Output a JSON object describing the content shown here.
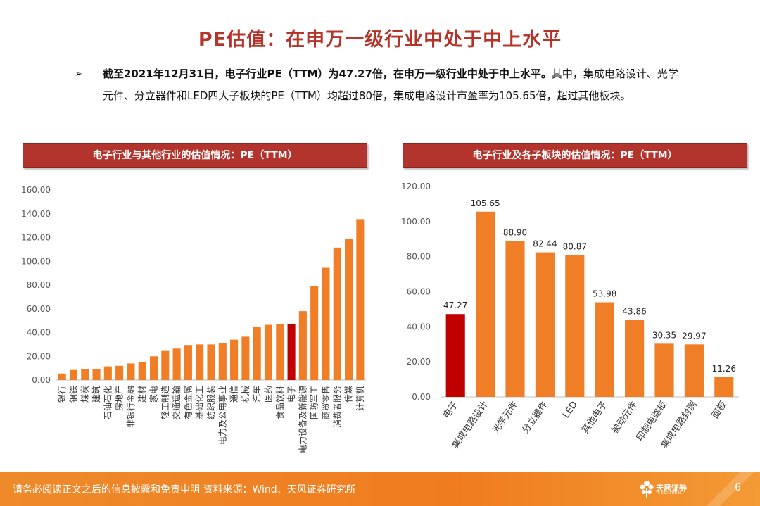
{
  "page": {
    "title": "PE估值：在申万一级行业中处于中上水平",
    "bullet_marker": "➢",
    "bullet_bold": "截至2021年12月31日，电子行业PE（TTM）为47.27倍，在申万一级行业中处于中上水平。",
    "bullet_rest": "其中，集成电路设计、光学元件、分立器件和LED四大子板块的PE（TTM）均超过80倍，集成电路设计市盈率为105.65倍，超过其他板块。"
  },
  "footer": {
    "note": "请务必阅读正文之后的信息披露和免责申明   资料来源：Wind、天风证券研究所",
    "logo_text": "天风证券",
    "logo_sub": "TF SECURITIES",
    "page_number": "6"
  },
  "colors": {
    "bar": "#f07e26",
    "highlight": "#c00000",
    "header": "#b3342c"
  },
  "chart_data": [
    {
      "type": "bar",
      "title": "电子行业与其他行业的估值情况：PE（TTM）",
      "categories": [
        "银行",
        "钢铁",
        "煤炭",
        "建筑",
        "石油石化",
        "房地产",
        "非银行金融",
        "建材",
        "家电",
        "轻工制造",
        "交通运输",
        "有色金属",
        "基础化工",
        "纺织服装",
        "电力及公用事业",
        "通信",
        "机械",
        "汽车",
        "医药",
        "食品饮料",
        "电子",
        "电力设备及新能源",
        "国防军工",
        "商贸零售",
        "消费者服务",
        "传媒",
        "计算机"
      ],
      "values": [
        5.5,
        8.5,
        9.0,
        9.5,
        11.5,
        12.0,
        14.0,
        15.0,
        20.0,
        24.5,
        26.5,
        29.5,
        30.0,
        30.0,
        31.0,
        34.0,
        36.5,
        44.5,
        46.5,
        47.0,
        47.27,
        58.0,
        79.0,
        94.5,
        111.5,
        119.0,
        135.5
      ],
      "highlight_index": 20,
      "ylim": [
        0,
        160
      ],
      "yticks": [
        "0.00",
        "20.00",
        "40.00",
        "60.00",
        "80.00",
        "100.00",
        "120.00",
        "140.00",
        "160.00"
      ],
      "grid": false,
      "legend": "none"
    },
    {
      "type": "bar",
      "title": "电子行业及各子板块的估值情况：PE（TTM）",
      "categories": [
        "电子",
        "集成电路设计",
        "光学元件",
        "分立器件",
        "LED",
        "其他电子",
        "被动元件",
        "印制电路板",
        "集成电路封测",
        "面板"
      ],
      "values": [
        47.27,
        105.65,
        88.9,
        82.44,
        80.87,
        53.98,
        43.86,
        30.35,
        29.97,
        11.26
      ],
      "value_labels": [
        "47.27",
        "105.65",
        "88.90",
        "82.44",
        "80.87",
        "53.98",
        "43.86",
        "30.35",
        "29.97",
        "11.26"
      ],
      "highlight_index": 0,
      "ylim": [
        0,
        120
      ],
      "yticks": [
        "0.00",
        "20.00",
        "40.00",
        "60.00",
        "80.00",
        "100.00",
        "120.00"
      ],
      "grid": false,
      "legend": "none"
    }
  ]
}
